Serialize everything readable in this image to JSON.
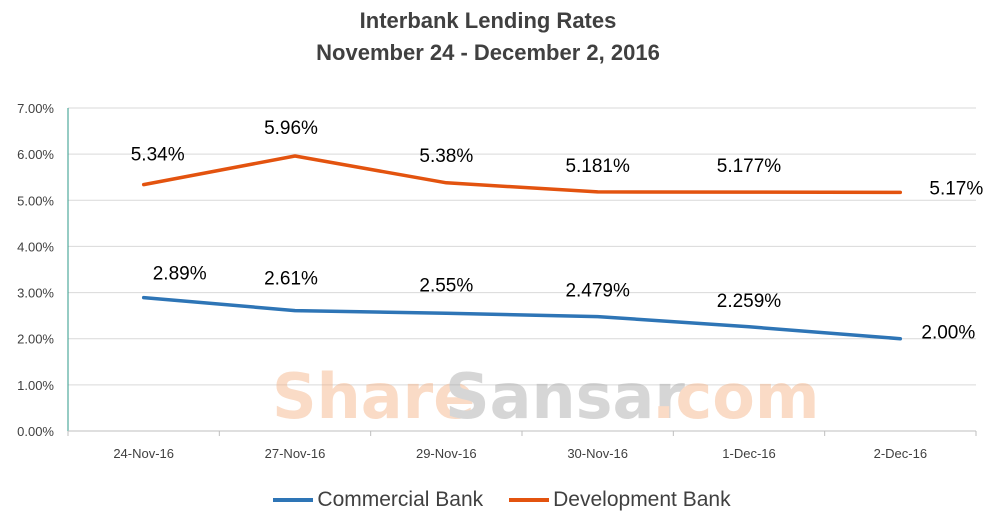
{
  "chart_data": {
    "type": "line",
    "title": "Interbank Lending Rates",
    "subtitle": "November 24 - December 2, 2016",
    "categories": [
      "24-Nov-16",
      "27-Nov-16",
      "29-Nov-16",
      "30-Nov-16",
      "1-Dec-16",
      "2-Dec-16"
    ],
    "y_ticks": [
      "0.00%",
      "1.00%",
      "2.00%",
      "3.00%",
      "4.00%",
      "5.00%",
      "6.00%",
      "7.00%"
    ],
    "ylim": [
      0,
      7
    ],
    "grid": true,
    "legend_position": "bottom",
    "series": [
      {
        "name": "Commercial Bank",
        "color": "#2e75b6",
        "values": [
          2.89,
          2.61,
          2.55,
          2.479,
          2.259,
          2.0
        ],
        "labels": [
          "2.89%",
          "2.61%",
          "2.55%",
          "2.479%",
          "2.259%",
          "2.00%"
        ]
      },
      {
        "name": "Development Bank",
        "color": "#e3530f",
        "values": [
          5.34,
          5.96,
          5.38,
          5.181,
          5.177,
          5.17
        ],
        "labels": [
          "5.34%",
          "5.96%",
          "5.38%",
          "5.181%",
          "5.177%",
          "5.17%"
        ]
      }
    ]
  },
  "watermark": {
    "part1": "Share",
    "part2": "Sansar",
    "part3": ".com"
  }
}
